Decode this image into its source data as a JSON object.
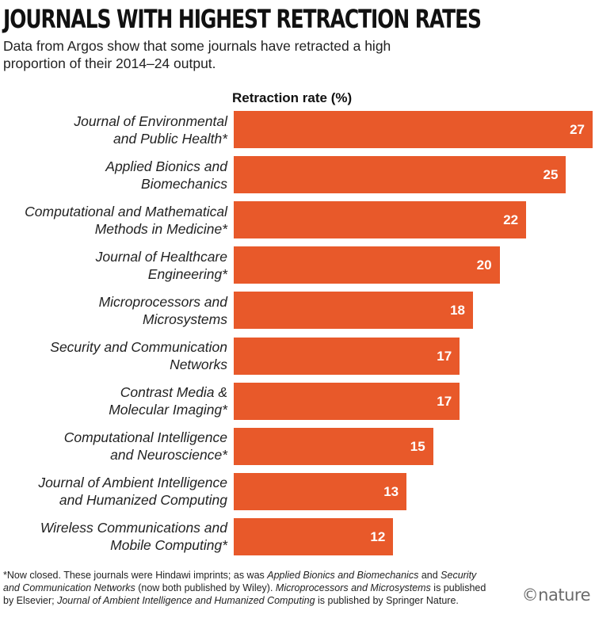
{
  "chart_data": {
    "type": "bar",
    "orientation": "horizontal",
    "title": "JOURNALS WITH HIGHEST RETRACTION RATES",
    "subtitle": "Data from Argos show that some journals have retracted a high proportion of their 2014–24 output.",
    "xlabel": "Retraction rate (%)",
    "ylabel": "",
    "xlim": [
      0,
      27
    ],
    "grid": false,
    "legend": "none",
    "categories": [
      [
        "Journal of Environmental",
        "and Public Health*"
      ],
      [
        "Applied Bionics and",
        "Biomechanics"
      ],
      [
        "Computational and Mathematical",
        "Methods in Medicine*"
      ],
      [
        "Journal of Healthcare",
        "Engineering*"
      ],
      [
        "Microprocessors and",
        "Microsystems"
      ],
      [
        "Security and Communication",
        "Networks"
      ],
      [
        "Contrast Media &",
        "Molecular Imaging*"
      ],
      [
        "Computational Intelligence",
        "and Neuroscience*"
      ],
      [
        "Journal of Ambient Intelligence",
        "and Humanized Computing"
      ],
      [
        "Wireless Communications and",
        "Mobile Computing*"
      ]
    ],
    "values": [
      27,
      25,
      22,
      20,
      18,
      17,
      17,
      15,
      13,
      12
    ],
    "bar_color": "#e8592a"
  },
  "footnote": [
    {
      "text": "*Now closed. These journals were Hindawi imprints; as was ",
      "italic": false
    },
    {
      "text": "Applied Bionics and Biomechanics",
      "italic": true
    },
    {
      "text": " and ",
      "italic": false
    },
    {
      "text": "Security and Communication Networks",
      "italic": true
    },
    {
      "text": " (now both published by Wiley). ",
      "italic": false
    },
    {
      "text": "Microprocessors and Microsystems",
      "italic": true
    },
    {
      "text": " is published by Elsevier; ",
      "italic": false
    },
    {
      "text": "Journal of Ambient Intelligence and Humanized Computing",
      "italic": true
    },
    {
      "text": " is published by Springer Nature.",
      "italic": false
    }
  ],
  "logo": "©nature"
}
